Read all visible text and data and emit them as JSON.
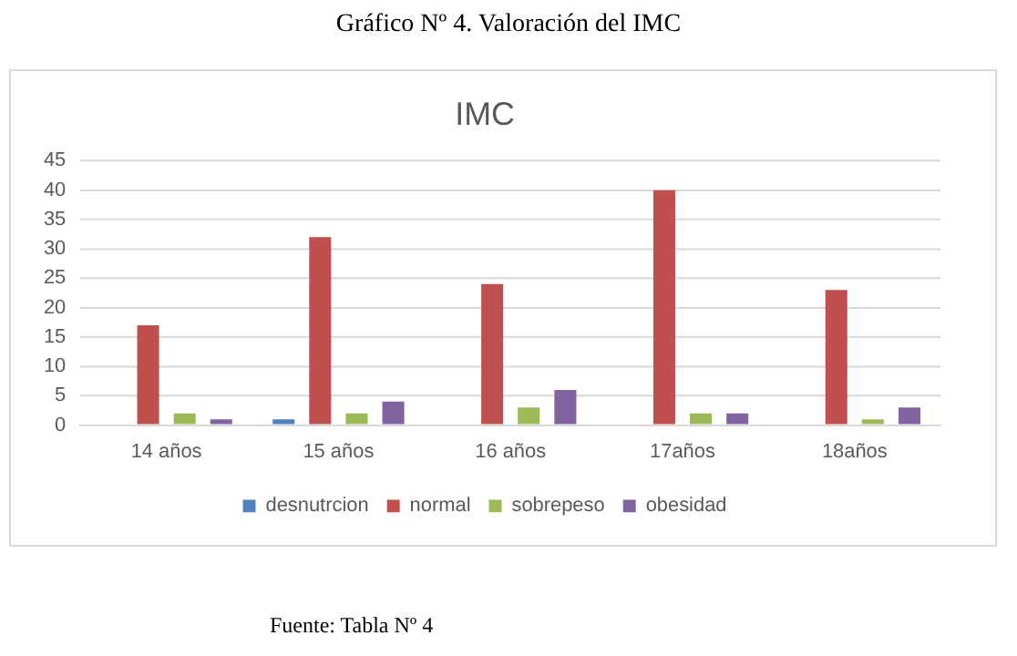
{
  "chart_data": {
    "type": "bar",
    "title": "IMC",
    "annotations": [
      "Gráfico Nº 4. Valoración del  IMC",
      "Fuente: Tabla Nº 4"
    ],
    "categories": [
      "14 años",
      "15 años",
      "16 años",
      "17años",
      "18años"
    ],
    "series": [
      {
        "name": "desnutrcion",
        "color": "#4f81bd",
        "values": [
          0,
          1,
          0,
          0,
          0
        ]
      },
      {
        "name": "normal",
        "color": "#c0504d",
        "values": [
          17,
          32,
          24,
          40,
          23
        ]
      },
      {
        "name": "sobrepeso",
        "color": "#9bbb59",
        "values": [
          2,
          2,
          3,
          2,
          1
        ]
      },
      {
        "name": "obesidad",
        "color": "#8064a2",
        "values": [
          1,
          4,
          6,
          2,
          3
        ]
      }
    ],
    "ylim": [
      0,
      45
    ],
    "yticks": [
      0,
      5,
      10,
      15,
      20,
      25,
      30,
      35,
      40,
      45
    ],
    "grid": "y",
    "legend": "bottom"
  }
}
